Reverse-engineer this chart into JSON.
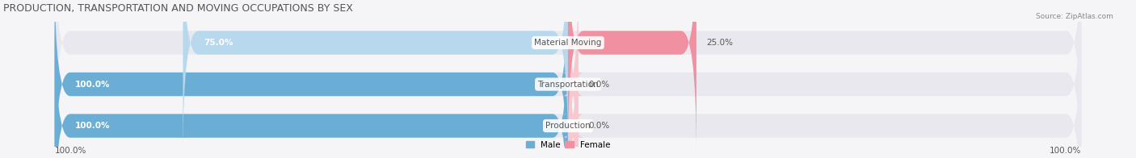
{
  "title": "PRODUCTION, TRANSPORTATION AND MOVING OCCUPATIONS BY SEX",
  "source": "Source: ZipAtlas.com",
  "categories": [
    "Production",
    "Transportation",
    "Material Moving"
  ],
  "male_pct": [
    100.0,
    100.0,
    75.0
  ],
  "female_pct": [
    0.0,
    0.0,
    25.0
  ],
  "male_color_strong": "#6aaed6",
  "male_color_light": "#b8d8ed",
  "female_color_strong": "#f090a0",
  "female_color_light": "#f8c8d0",
  "bar_bg_color": "#e8e8ee",
  "bg_color": "#f5f5f8",
  "text_color_white": "#ffffff",
  "text_color_dark": "#555555",
  "label_fontsize": 7.5,
  "title_fontsize": 9,
  "figsize": [
    14.06,
    1.96
  ],
  "dpi": 100,
  "left_axis_label": "100.0%",
  "right_axis_label": "100.0%"
}
